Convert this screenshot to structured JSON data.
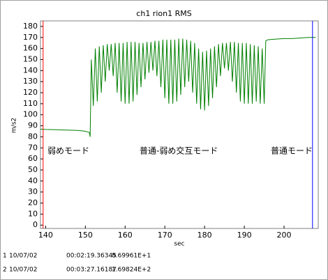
{
  "chart_data": {
    "type": "line",
    "title": "ch1 rion1 RMS",
    "x_label": "sec",
    "y_label": "m/s2",
    "color": "#008000",
    "xlim": [
      138.7,
      208.6
    ],
    "xticks": [
      140,
      150,
      160,
      170,
      180,
      190,
      200
    ],
    "ylim": [
      -3,
      185
    ],
    "yticks": [
      0,
      10,
      20,
      30,
      40,
      50,
      60,
      70,
      80,
      90,
      100,
      110,
      120,
      130,
      140,
      150,
      160,
      170,
      180
    ],
    "x": [
      138.7,
      140,
      142,
      144,
      146,
      148,
      149,
      150,
      150.5,
      151,
      151.2,
      151.5,
      152,
      152.5,
      153,
      153.5,
      154,
      154.5,
      155,
      155.5,
      156,
      156.5,
      157,
      157.5,
      158,
      158.5,
      159,
      159.5,
      160,
      160.5,
      161,
      161.5,
      162,
      162.5,
      163,
      163.5,
      164,
      164.5,
      165,
      165.5,
      166,
      166.5,
      167,
      167.5,
      168,
      168.5,
      169,
      169.5,
      170,
      170.5,
      171,
      171.5,
      172,
      172.5,
      173,
      173.5,
      174,
      174.5,
      175,
      175.5,
      176,
      176.5,
      177,
      177.5,
      178,
      178.5,
      179,
      179.5,
      180,
      180.5,
      181,
      181.5,
      182,
      182.5,
      183,
      183.5,
      184,
      184.5,
      185,
      185.5,
      186,
      186.5,
      187,
      187.5,
      188,
      188.5,
      189,
      189.5,
      190,
      190.5,
      191,
      191.5,
      192,
      192.5,
      193,
      193.5,
      194,
      194.5,
      195,
      195.4,
      196,
      198,
      200,
      202,
      204,
      206,
      208
    ],
    "values": [
      87,
      86.7,
      86.5,
      86.3,
      86,
      85.8,
      85.5,
      85,
      84.5,
      84,
      80,
      150,
      108,
      160,
      112,
      162,
      120,
      163,
      130,
      164,
      140,
      164,
      135,
      165,
      120,
      165,
      112,
      165,
      110,
      166,
      110,
      166,
      112,
      166,
      118,
      165,
      125,
      165,
      132,
      166,
      138,
      166,
      140,
      167,
      135,
      167,
      125,
      168,
      115,
      168,
      110,
      168,
      110,
      168,
      112,
      169,
      118,
      169,
      125,
      168,
      130,
      167,
      120,
      165,
      110,
      160,
      105,
      157,
      104,
      158,
      108,
      160,
      115,
      162,
      125,
      164,
      135,
      165,
      142,
      165,
      140,
      166,
      130,
      166,
      120,
      165,
      112,
      165,
      110,
      165,
      110,
      164,
      110,
      163,
      112,
      162,
      110,
      160,
      110,
      167,
      168,
      168.5,
      169,
      169,
      169.5,
      170,
      170
    ],
    "annotations": [
      "弱めモード",
      "普通-弱め交互モード",
      "普通モード"
    ],
    "cursors": [
      {
        "label": "1",
        "date": "10/07/02",
        "time": "00:02:19.36345",
        "x": 139.36345,
        "value": {
          "value": 86.9961,
          "label": "8.69961E+1"
        },
        "color": "#ff0000"
      },
      {
        "label": "2",
        "date": "10/07/02",
        "time": "00:03:27.16187",
        "x": 207.16187,
        "value": {
          "value": 169.824,
          "label": "1.69824E+2"
        },
        "color": "#0000ff"
      }
    ]
  }
}
